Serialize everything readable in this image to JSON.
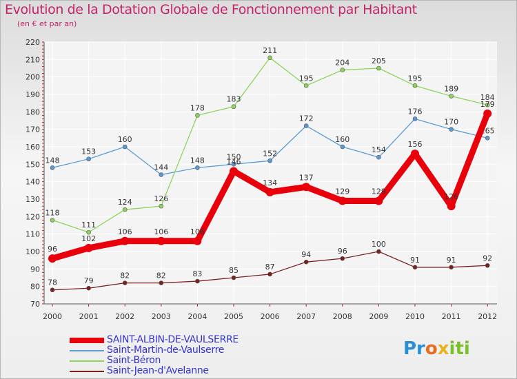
{
  "chart_data": {
    "type": "line",
    "title": "Evolution de la Dotation Globale de Fonctionnement par Habitant",
    "subtitle": "(en € et par an)",
    "x": [
      "2000",
      "2001",
      "2002",
      "2003",
      "2004",
      "2005",
      "2006",
      "2007",
      "2008",
      "2009",
      "2010",
      "2011",
      "2012"
    ],
    "yticks": [
      70,
      80,
      90,
      100,
      110,
      120,
      130,
      140,
      150,
      160,
      170,
      180,
      190,
      200,
      210,
      220
    ],
    "ylim": [
      70,
      220
    ],
    "grid": true,
    "series": [
      {
        "name": "Saint-Martin-de-Vaulserre",
        "color": "#5b9bd5",
        "values": [
          148,
          153,
          160,
          144,
          148,
          150,
          152,
          172,
          160,
          154,
          176,
          170,
          165
        ]
      },
      {
        "name": "Saint-Béron",
        "color": "#8ed35a",
        "values": [
          118,
          111,
          124,
          126,
          178,
          183,
          211,
          195,
          204,
          205,
          195,
          189,
          184
        ]
      },
      {
        "name": "Saint-Jean-d'Avelanne",
        "color": "#7a2020",
        "values": [
          78,
          79,
          82,
          82,
          83,
          85,
          87,
          94,
          96,
          100,
          91,
          91,
          92
        ]
      },
      {
        "name": "SAINT-ALBIN-DE-VAULSERRE",
        "color": "#e8000b",
        "values": [
          96,
          102,
          106,
          106,
          106,
          146,
          134,
          137,
          129,
          129,
          156,
          126,
          179
        ]
      }
    ]
  },
  "legend": [
    {
      "label": "SAINT-ALBIN-DE-VAULSERRE",
      "color": "#e8000b",
      "thickness": 8
    },
    {
      "label": "Saint-Martin-de-Vaulserre",
      "color": "#5b9bd5",
      "thickness": 2
    },
    {
      "label": "Saint-Béron",
      "color": "#8ed35a",
      "thickness": 2
    },
    {
      "label": "Saint-Jean-d'Avelanne",
      "color": "#7a2020",
      "thickness": 2
    }
  ],
  "legend_text_color": "#3333cc",
  "logo": {
    "parts": [
      "Pr",
      "o",
      "x",
      "iti"
    ]
  }
}
